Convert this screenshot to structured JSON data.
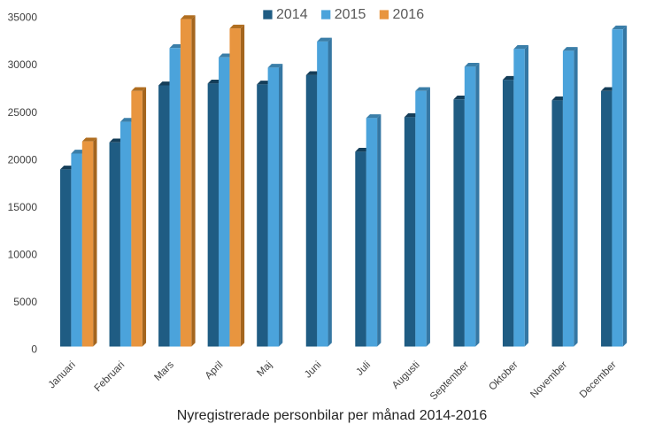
{
  "chart_data": {
    "type": "bar",
    "style": "3d-clustered-column",
    "title": "Nyregistrerade personbilar per månad 2014-2016",
    "categories": [
      "Januari",
      "Februari",
      "Mars",
      "April",
      "Maj",
      "Juni",
      "Juli",
      "Augusti",
      "September",
      "Oktober",
      "November",
      "December"
    ],
    "series": [
      {
        "name": "2014",
        "color": "#1f5c83",
        "top_color": "#153e59",
        "side_color": "#174767",
        "values": [
          19000,
          21900,
          28000,
          28200,
          28100,
          29100,
          20900,
          24600,
          26500,
          28600,
          26400,
          27400
        ]
      },
      {
        "name": "2015",
        "color": "#4ba3db",
        "top_color": "#3a7ea8",
        "side_color": "#3577a3",
        "values": [
          20700,
          24100,
          32000,
          31000,
          29900,
          32700,
          24500,
          27400,
          30000,
          31900,
          31700,
          34000
        ]
      },
      {
        "name": "2016",
        "color": "#e8953f",
        "top_color": "#b06e20",
        "side_color": "#a4651e",
        "values": [
          22000,
          27400,
          35100,
          34100,
          null,
          null,
          null,
          null,
          null,
          null,
          null,
          null
        ]
      }
    ],
    "ylabel": "",
    "xlabel": "",
    "ylim": [
      0,
      35000
    ],
    "ytick_step": 5000,
    "yticks": [
      "0",
      "5000",
      "10000",
      "15000",
      "20000",
      "25000",
      "30000",
      "35000"
    ],
    "grid": false,
    "legend_position": "top",
    "background": "#ffffff",
    "axis_text_color": "#404040",
    "legend_text_color": "#595959",
    "title_color": "#262626"
  }
}
